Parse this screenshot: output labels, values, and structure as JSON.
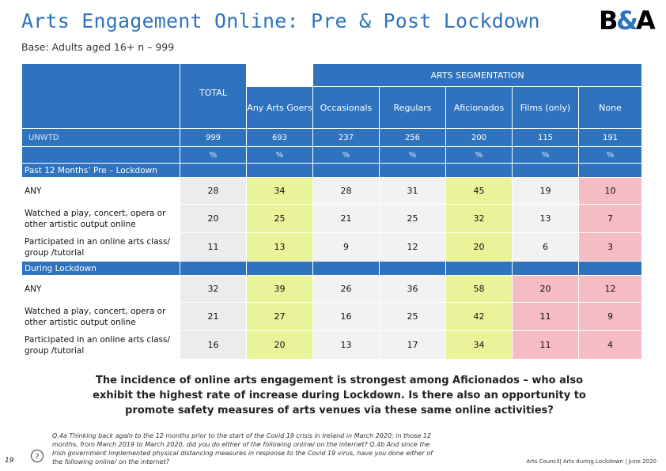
{
  "header": {
    "title": "Arts Engagement Online: Pre & Post Lockdown",
    "subtitle": "Base: Adults aged 16+ n – 999",
    "logo": {
      "left": "B",
      "amp": "&",
      "right": "A"
    }
  },
  "table": {
    "segmentation_label": "ARTS SEGMENTATION",
    "total_label": "TOTAL",
    "columns": [
      "Any Arts Goers",
      "Occasionals",
      "Regulars",
      "Aficionados",
      "Films (only)",
      "None"
    ],
    "unwtd_label": "UNWTD",
    "unwtd": [
      "999",
      "693",
      "237",
      "256",
      "200",
      "115",
      "191"
    ],
    "pct": [
      "%",
      "%",
      "%",
      "%",
      "%",
      "%",
      "%"
    ],
    "sections": [
      {
        "label": "Past 12 Months’ Pre – Lockdown",
        "rows": [
          {
            "label": "ANY",
            "values": [
              "28",
              "34",
              "28",
              "31",
              "45",
              "19",
              "10"
            ]
          },
          {
            "label": "Watched a play, concert, opera or other artistic output online",
            "values": [
              "20",
              "25",
              "21",
              "25",
              "32",
              "13",
              "7"
            ]
          },
          {
            "label": "Participated in an online arts class/ group /tutorial",
            "values": [
              "11",
              "13",
              "9",
              "12",
              "20",
              "6",
              "3"
            ]
          }
        ]
      },
      {
        "label": "During Lockdown",
        "rows": [
          {
            "label": "ANY",
            "values": [
              "32",
              "39",
              "26",
              "36",
              "58",
              "20",
              "12"
            ]
          },
          {
            "label": "Watched a play, concert, opera or other artistic output online",
            "values": [
              "21",
              "27",
              "16",
              "25",
              "42",
              "11",
              "9"
            ]
          },
          {
            "label": "Participated in an online arts class/ group /tutorial",
            "values": [
              "16",
              "20",
              "13",
              "17",
              "34",
              "11",
              "4"
            ]
          }
        ]
      }
    ]
  },
  "callout": "The incidence of online arts engagement is strongest among Aficionados – who also exhibit the highest rate of increase during Lockdown. Is there also an opportunity to promote safety measures of arts venues via these same online activities?",
  "footer": {
    "page_number": "19",
    "question_text": "Q.4a Thinking back again to the 12 months prior to the start of the Covid 19 crisis in Ireland in March 2020; in those 12 months, from March 2019 to March 2020, did you do either of the following online/ on the internet? Q.4b And since the Irish government implemented physical distancing measures in response to the Covid 19 virus, have you done either of the following online/ on the internet?",
    "source": "Arts Council| Arts during Lockdown | June 2020"
  },
  "colors": {
    "accent": "#2f73bf",
    "highlight_high": "#e8f39a",
    "highlight_low": "#f5bcc3"
  }
}
